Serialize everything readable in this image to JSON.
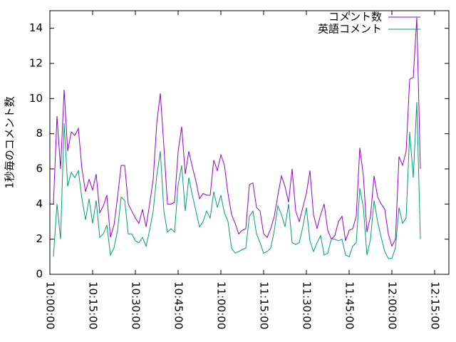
{
  "chart_data": {
    "type": "line",
    "y_label": "1秒毎のコメント数",
    "x": [
      "10:01:15",
      "10:02:30",
      "10:03:45",
      "10:05:00",
      "10:06:15",
      "10:07:30",
      "10:08:45",
      "10:10:00",
      "10:11:15",
      "10:12:30",
      "10:13:45",
      "10:15:00",
      "10:16:15",
      "10:17:30",
      "10:18:45",
      "10:20:00",
      "10:21:15",
      "10:22:30",
      "10:23:45",
      "10:25:00",
      "10:26:15",
      "10:27:30",
      "10:28:45",
      "10:30:00",
      "10:31:15",
      "10:32:30",
      "10:33:45",
      "10:35:00",
      "10:36:15",
      "10:37:30",
      "10:38:45",
      "10:40:00",
      "10:41:15",
      "10:42:30",
      "10:43:45",
      "10:45:00",
      "10:46:15",
      "10:47:30",
      "10:48:45",
      "10:50:00",
      "10:51:15",
      "10:52:30",
      "10:53:45",
      "10:55:00",
      "10:56:15",
      "10:57:30",
      "10:58:45",
      "11:00:00",
      "11:01:15",
      "11:02:30",
      "11:03:45",
      "11:05:00",
      "11:06:15",
      "11:07:30",
      "11:08:45",
      "11:10:00",
      "11:11:15",
      "11:12:30",
      "11:13:45",
      "11:15:00",
      "11:16:15",
      "11:17:30",
      "11:18:45",
      "11:20:00",
      "11:21:15",
      "11:22:30",
      "11:23:45",
      "11:25:00",
      "11:26:15",
      "11:27:30",
      "11:28:45",
      "11:30:00",
      "11:31:15",
      "11:32:30",
      "11:33:45",
      "11:35:00",
      "11:36:15",
      "11:37:30",
      "11:38:45",
      "11:40:00",
      "11:41:15",
      "11:42:30",
      "11:43:45",
      "11:45:00",
      "11:46:15",
      "11:47:30",
      "11:48:45",
      "11:50:00",
      "11:51:15",
      "11:52:30",
      "11:53:45",
      "11:55:00",
      "11:56:15",
      "11:57:30",
      "11:58:45",
      "12:00:00",
      "12:01:15",
      "12:02:30",
      "12:03:45",
      "12:05:00",
      "12:06:15",
      "12:07:30",
      "12:08:45",
      "12:10:00"
    ],
    "series": [
      {
        "name": "コメント数",
        "color": "#9400d3",
        "values": [
          4,
          9,
          6,
          10.5,
          7,
          8.1,
          7.9,
          8.3,
          6,
          4.7,
          5.4,
          4.8,
          5.7,
          3.5,
          3.9,
          4.5,
          2.1,
          2.8,
          4.4,
          6.2,
          6.2,
          4,
          3.6,
          3.2,
          2.9,
          3.7,
          2.7,
          4,
          5.4,
          8.6,
          10.3,
          7.3,
          4,
          4,
          4.1,
          7,
          8.4,
          5.7,
          7,
          6.1,
          5.3,
          4.3,
          4.6,
          4.5,
          4.5,
          6.5,
          5.9,
          6.8,
          6.2,
          4.6,
          3.4,
          2.9,
          2.3,
          2.5,
          2.6,
          5.1,
          5.2,
          3.8,
          3.6,
          2.3,
          2.1,
          2.6,
          3.3,
          4.5,
          5.6,
          5,
          4.1,
          6,
          3.6,
          3,
          3.8,
          4.6,
          5.9,
          3.4,
          2.6,
          3.4,
          4,
          2.5,
          2,
          2.2,
          3,
          3.3,
          1.9,
          2.5,
          2.6,
          3.3,
          7.2,
          5.6,
          2.4,
          3.3,
          5.6,
          4.4,
          4,
          3.7,
          2.3,
          1.6,
          2,
          6.7,
          6.2,
          7,
          11.1,
          11.2,
          14.6,
          6
        ]
      },
      {
        "name": "英語コメント",
        "color": "#009e73",
        "values": [
          1,
          4,
          2,
          8.6,
          5,
          5.8,
          5.5,
          5.9,
          4.3,
          3.1,
          4.3,
          2.9,
          4.2,
          2.1,
          2.3,
          2.8,
          1.1,
          1.5,
          2.5,
          4.4,
          4.2,
          2.3,
          2.3,
          1.9,
          1.8,
          2.1,
          1.6,
          2.5,
          3.6,
          5.6,
          7,
          3.6,
          2.4,
          2.6,
          2.4,
          5.1,
          6.2,
          3.6,
          5.5,
          4.5,
          3.6,
          2.7,
          3,
          3.6,
          3.2,
          4.7,
          3.8,
          4.5,
          3.5,
          3,
          1.5,
          1.2,
          1.3,
          1.4,
          1.5,
          3.3,
          3.6,
          2.3,
          1.8,
          1.2,
          1.3,
          1.5,
          2.5,
          3.9,
          3.4,
          2.7,
          4,
          1.8,
          1.7,
          1.8,
          2.7,
          3.8,
          1.9,
          1.3,
          1.8,
          2.2,
          1.1,
          1.2,
          2,
          2,
          1.9,
          2,
          1.1,
          1,
          1.6,
          1.8,
          4.9,
          3.8,
          1.1,
          2,
          4.2,
          3,
          2.1,
          1.3,
          0.9,
          0.9,
          1.5,
          3.8,
          2.9,
          3.2,
          8.1,
          5.5,
          9.8,
          2
        ]
      }
    ],
    "xlim": [
      "10:00:00",
      "12:20:00"
    ],
    "xticks": [
      "10:00:00",
      "10:15:00",
      "10:30:00",
      "10:45:00",
      "11:00:00",
      "11:15:00",
      "11:30:00",
      "11:45:00",
      "12:00:00",
      "12:15:00"
    ],
    "ylim": [
      0,
      15
    ],
    "yticks": [
      0,
      2,
      4,
      6,
      8,
      10,
      12,
      14
    ],
    "legend": "top-right"
  }
}
